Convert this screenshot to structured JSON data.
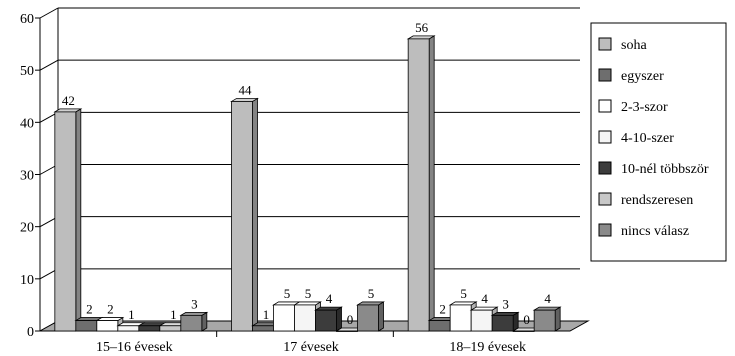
{
  "chart_data": {
    "type": "bar",
    "title": "",
    "xlabel": "",
    "ylabel": "",
    "ylim": [
      0,
      60
    ],
    "yticks": [
      0,
      10,
      20,
      30,
      40,
      50,
      60
    ],
    "grid": true,
    "legend_position": "right",
    "categories": [
      "15–16 évesek",
      "17 évesek",
      "18–19 évesek"
    ],
    "series": [
      {
        "name": "soha",
        "color": "#bdbdbd",
        "values": [
          42,
          44,
          56
        ]
      },
      {
        "name": "egyszer",
        "color": "#6e6e6e",
        "values": [
          2,
          1,
          2
        ]
      },
      {
        "name": "2-3-szor",
        "color": "#ffffff",
        "values": [
          2,
          5,
          5
        ]
      },
      {
        "name": "4-10-szer",
        "color": "#f5f5f5",
        "values": [
          1,
          5,
          4
        ]
      },
      {
        "name": "10-nél többször",
        "color": "#3c3c3c",
        "values": [
          1,
          4,
          3
        ]
      },
      {
        "name": "rendszeresen",
        "color": "#c8c8c8",
        "values": [
          1,
          0,
          0
        ]
      },
      {
        "name": "nincs válasz",
        "color": "#8a8a8a",
        "values": [
          3,
          5,
          4
        ]
      }
    ],
    "data_labels": [
      [
        "42",
        "2",
        "2",
        "1",
        "",
        "1",
        "3"
      ],
      [
        "44",
        "1",
        "5",
        "5",
        "4",
        "0",
        "5"
      ],
      [
        "56",
        "2",
        "5",
        "4",
        "3",
        "0",
        "4"
      ]
    ]
  }
}
